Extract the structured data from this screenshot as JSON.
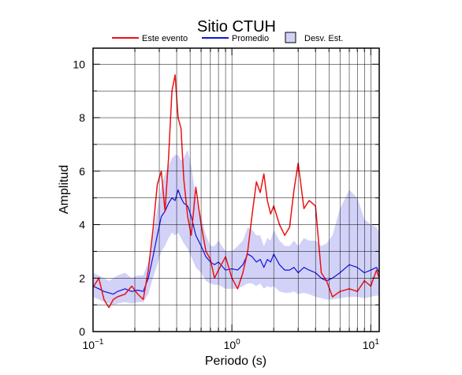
{
  "chart_data": {
    "type": "line",
    "title": "Sitio CTUH",
    "xlabel": "Periodo (s)",
    "ylabel": "Amplitud",
    "x_scale": "log",
    "xlim": [
      0.1,
      11.5
    ],
    "ylim": [
      0,
      10.6
    ],
    "x_ticks": [
      {
        "value": 0.1,
        "base": "10",
        "exp": "−1"
      },
      {
        "value": 1,
        "base": "10",
        "exp": "0"
      },
      {
        "value": 10,
        "base": "10",
        "exp": "1"
      }
    ],
    "y_ticks": [
      0,
      2,
      4,
      6,
      8,
      10
    ],
    "grid": true,
    "legend_position": "top",
    "legend": [
      "Este evento",
      "Promedio",
      "Desv. Est."
    ],
    "colors": {
      "este_evento": "#ee1111",
      "promedio": "#1111dd",
      "desv_est": "#d2d2f8"
    },
    "x": [
      0.1,
      0.11,
      0.12,
      0.13,
      0.14,
      0.15,
      0.17,
      0.19,
      0.21,
      0.23,
      0.25,
      0.27,
      0.29,
      0.31,
      0.33,
      0.35,
      0.37,
      0.39,
      0.41,
      0.43,
      0.45,
      0.48,
      0.51,
      0.55,
      0.6,
      0.65,
      0.7,
      0.75,
      0.8,
      0.9,
      1.0,
      1.1,
      1.2,
      1.3,
      1.4,
      1.5,
      1.6,
      1.7,
      1.8,
      1.9,
      2.0,
      2.2,
      2.4,
      2.6,
      2.8,
      3.0,
      3.3,
      3.6,
      4.0,
      4.4,
      4.8,
      5.3,
      6.0,
      7.0,
      8.0,
      9.0,
      10.0,
      11.0,
      11.5
    ],
    "series": [
      {
        "name": "Este evento",
        "values": [
          1.65,
          2.0,
          1.2,
          0.9,
          1.2,
          1.3,
          1.4,
          1.7,
          1.4,
          1.2,
          2.3,
          3.8,
          5.5,
          6.0,
          4.5,
          6.5,
          9.0,
          9.6,
          8.0,
          7.6,
          5.7,
          4.3,
          3.6,
          5.4,
          4.0,
          3.0,
          2.7,
          2.0,
          2.3,
          2.8,
          2.0,
          1.6,
          2.2,
          3.0,
          4.4,
          5.6,
          5.2,
          5.9,
          4.9,
          4.4,
          4.7,
          4.0,
          3.6,
          3.9,
          5.3,
          6.3,
          4.6,
          4.9,
          4.7,
          2.2,
          1.9,
          1.3,
          1.5,
          1.6,
          1.5,
          1.9,
          1.7,
          2.3,
          2.0
        ]
      },
      {
        "name": "Promedio",
        "values": [
          1.7,
          1.6,
          1.5,
          1.45,
          1.4,
          1.5,
          1.6,
          1.5,
          1.55,
          1.5,
          2.0,
          2.8,
          3.6,
          4.3,
          4.5,
          4.8,
          5.0,
          4.9,
          5.3,
          5.0,
          4.8,
          4.7,
          4.3,
          3.6,
          3.2,
          2.8,
          2.6,
          2.5,
          2.6,
          2.3,
          2.35,
          2.3,
          2.5,
          2.9,
          2.8,
          2.6,
          2.7,
          2.4,
          2.7,
          2.6,
          2.9,
          2.5,
          2.3,
          2.3,
          2.4,
          2.2,
          2.4,
          2.3,
          2.2,
          2.0,
          1.9,
          2.0,
          2.2,
          2.5,
          2.4,
          2.2,
          2.3,
          2.4,
          2.2
        ]
      },
      {
        "name": "Desv. Est.",
        "lower": [
          1.3,
          1.2,
          1.1,
          1.05,
          1.0,
          1.05,
          1.1,
          1.05,
          1.1,
          1.1,
          1.4,
          2.0,
          2.5,
          3.0,
          3.2,
          3.5,
          3.7,
          3.6,
          3.7,
          3.5,
          3.3,
          3.1,
          2.8,
          2.4,
          2.2,
          1.9,
          1.8,
          1.75,
          1.75,
          1.6,
          1.6,
          1.6,
          1.7,
          1.8,
          1.8,
          1.7,
          1.8,
          1.6,
          1.7,
          1.65,
          1.7,
          1.5,
          1.45,
          1.45,
          1.5,
          1.4,
          1.45,
          1.4,
          1.3,
          1.25,
          1.2,
          1.2,
          1.25,
          1.3,
          1.3,
          1.25,
          1.3,
          1.35,
          1.3
        ],
        "upper": [
          2.2,
          2.1,
          2.0,
          1.9,
          2.0,
          2.1,
          2.2,
          2.0,
          2.1,
          2.1,
          2.6,
          3.6,
          4.6,
          5.4,
          5.9,
          6.2,
          6.5,
          6.6,
          6.6,
          6.4,
          6.5,
          6.8,
          6.2,
          5.0,
          4.3,
          3.6,
          3.2,
          3.2,
          3.4,
          3.0,
          3.0,
          3.2,
          3.4,
          3.9,
          3.8,
          3.6,
          3.6,
          3.2,
          3.5,
          3.4,
          3.8,
          3.4,
          3.2,
          3.2,
          3.4,
          3.2,
          3.5,
          3.4,
          3.4,
          3.2,
          3.3,
          3.6,
          4.6,
          5.3,
          5.0,
          4.2,
          4.0,
          3.9,
          3.7
        ]
      }
    ]
  }
}
